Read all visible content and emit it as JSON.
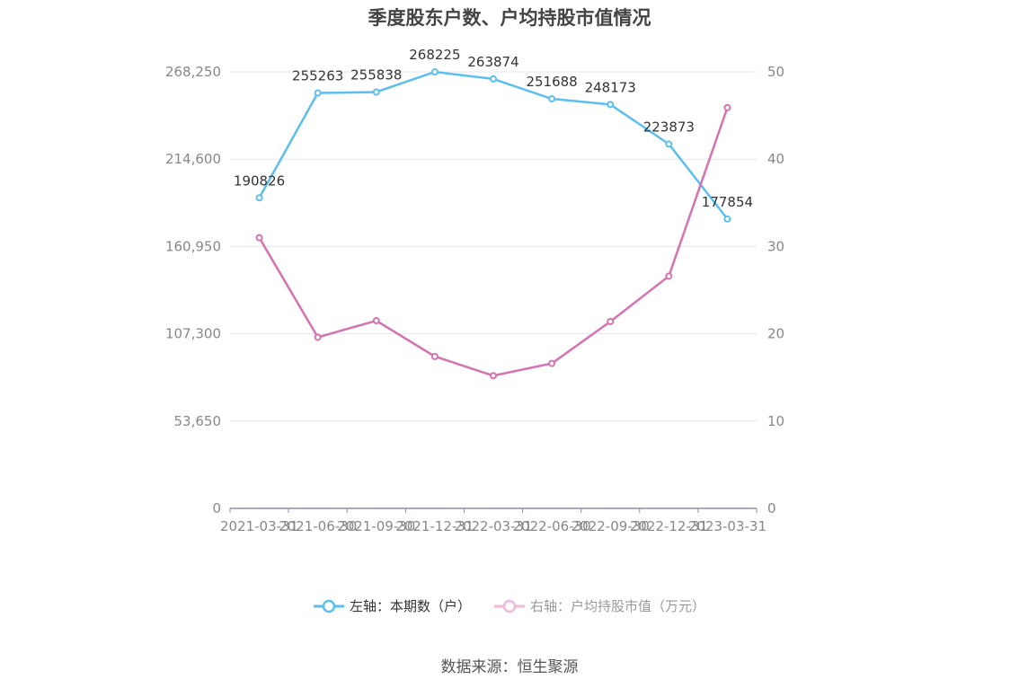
{
  "chart_data": {
    "type": "line",
    "title": "季度股东户数、户均持股市值情况",
    "categories": [
      "2021-03-31",
      "2021-06-30",
      "2021-09-30",
      "2021-12-31",
      "2022-03-31",
      "2022-06-30",
      "2022-09-30",
      "2022-12-31",
      "2023-03-31"
    ],
    "left_axis": {
      "ticks": [
        "0",
        "53,650",
        "107,300",
        "160,950",
        "214,600",
        "268,250"
      ],
      "ylim": [
        0,
        268250
      ]
    },
    "right_axis": {
      "ticks": [
        "0",
        "10",
        "20",
        "30",
        "40",
        "50"
      ],
      "ylim": [
        0,
        50
      ]
    },
    "series": [
      {
        "name": "左轴：本期数（户）",
        "axis": "left",
        "color": "#5bbfee",
        "values": [
          190826,
          255263,
          255838,
          268225,
          263874,
          251688,
          248173,
          223873,
          177854
        ],
        "labels": [
          "190826",
          "255263",
          "255838",
          "268225",
          "263874",
          "251688",
          "248173",
          "223873",
          "177854"
        ]
      },
      {
        "name": "右轴：户均持股市值（万元）",
        "axis": "right",
        "color": "#d472b2",
        "values": [
          31.0,
          19.6,
          21.5,
          17.4,
          15.2,
          16.6,
          21.4,
          26.6,
          45.9
        ]
      }
    ],
    "grid": true,
    "legend_position": "bottom-center"
  },
  "source": "数据来源：恒生聚源"
}
